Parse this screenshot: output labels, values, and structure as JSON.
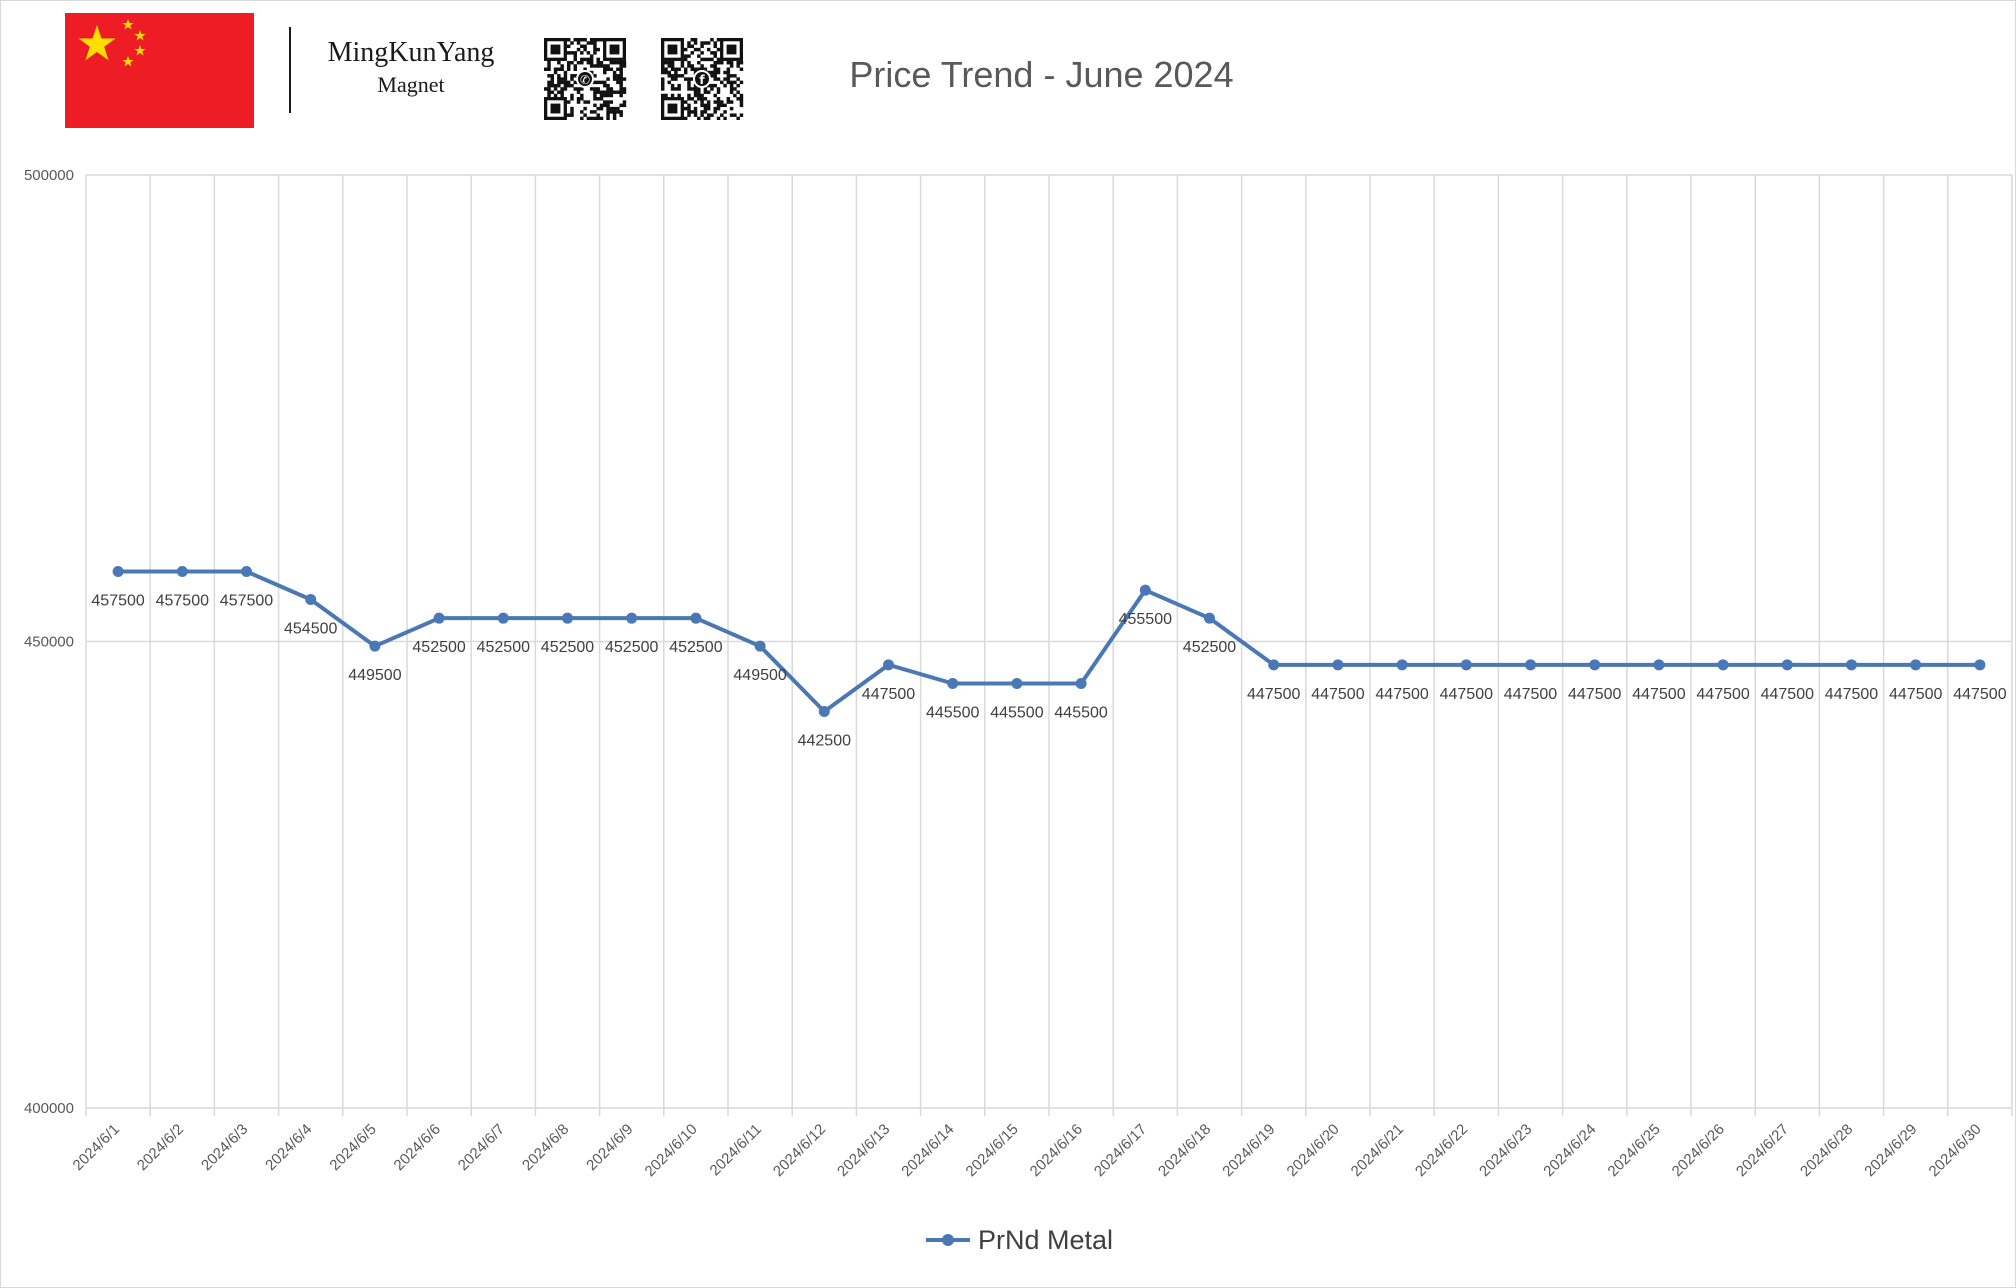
{
  "header": {
    "brand_name": "MingKunYang",
    "brand_sub": "Magnet",
    "flag_icon": "china-flag-icon",
    "qr_icons": [
      "whatsapp-qr-code-icon",
      "facebook-qr-code-icon"
    ]
  },
  "colors": {
    "series": "#4a78b6",
    "grid": "#d9d9d9",
    "flag_red": "#ee1c25",
    "flag_star": "#ffde00"
  },
  "chart_data": {
    "type": "line",
    "title": "Price Trend - June 2024",
    "xlabel": "",
    "ylabel": "",
    "ylim": [
      400000,
      500000
    ],
    "yticks": [
      "500000",
      "450000",
      "400000"
    ],
    "grid": "vertical and horizontal gridlines",
    "legend": "bottom",
    "categories": [
      "2024/6/1",
      "2024/6/2",
      "2024/6/3",
      "2024/6/4",
      "2024/6/5",
      "2024/6/6",
      "2024/6/7",
      "2024/6/8",
      "2024/6/9",
      "2024/6/10",
      "2024/6/11",
      "2024/6/12",
      "2024/6/13",
      "2024/6/14",
      "2024/6/15",
      "2024/6/16",
      "2024/6/17",
      "2024/6/18",
      "2024/6/19",
      "2024/6/20",
      "2024/6/21",
      "2024/6/22",
      "2024/6/23",
      "2024/6/24",
      "2024/6/25",
      "2024/6/26",
      "2024/6/27",
      "2024/6/28",
      "2024/6/29",
      "2024/6/30"
    ],
    "series": [
      {
        "name": "PrNd Metal",
        "values": [
          457500,
          457500,
          457500,
          454500,
          449500,
          452500,
          452500,
          452500,
          452500,
          452500,
          449500,
          442500,
          447500,
          445500,
          445500,
          445500,
          455500,
          452500,
          447500,
          447500,
          447500,
          447500,
          447500,
          447500,
          447500,
          447500,
          447500,
          447500,
          447500,
          447500
        ]
      }
    ]
  }
}
